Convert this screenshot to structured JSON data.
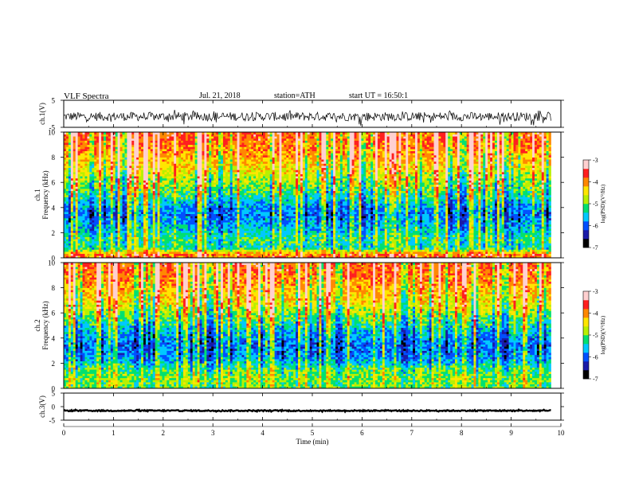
{
  "header": {
    "title": "VLF Spectra",
    "date": "Jul. 21, 2018",
    "station": "station=ATH",
    "start": "start UT = 16:50:1"
  },
  "colors": {
    "waveform": "#000000",
    "axis": "#000000",
    "spectrogram_scale": [
      "#000000",
      "#1a1aa8",
      "#0050ff",
      "#00c8ff",
      "#00e070",
      "#b8f000",
      "#ffe600",
      "#ff8800",
      "#ff1f1f",
      "#ffd0d0"
    ]
  },
  "chart_data": [
    {
      "type": "line",
      "name": "ch1-waveform",
      "ylabel": "ch.1(V)",
      "ylim": [
        -5,
        5
      ],
      "yticks": [
        "5",
        "-5"
      ],
      "xlim": [
        0,
        10
      ],
      "trace": {
        "baseline": -1.0,
        "amplitude_range": [
          -4.5,
          1.5
        ],
        "end_min": 9.8
      }
    },
    {
      "type": "heatmap",
      "name": "ch1-spectrogram",
      "ylabel": [
        "ch.1",
        "Frequency (kHz)"
      ],
      "ylim": [
        0,
        10
      ],
      "yticks": [
        "0",
        "2",
        "4",
        "6",
        "8",
        "10"
      ],
      "xlim": [
        0,
        10
      ],
      "data_end_min": 9.8,
      "log_psd_by_freq": [
        {
          "f": 0.3,
          "v": -3.9
        },
        {
          "f": 0.8,
          "v": -5.4
        },
        {
          "f": 1.5,
          "v": -5.2
        },
        {
          "f": 2.5,
          "v": -5.6
        },
        {
          "f": 3.5,
          "v": -5.9
        },
        {
          "f": 4.5,
          "v": -5.5
        },
        {
          "f": 5.5,
          "v": -5.0
        },
        {
          "f": 6.5,
          "v": -4.7
        },
        {
          "f": 7.5,
          "v": -4.3
        },
        {
          "f": 8.5,
          "v": -4.0
        },
        {
          "f": 9.5,
          "v": -3.8
        }
      ],
      "colorbar": {
        "label": "log(PSD)(V²/Hz)",
        "range": [
          -7,
          -3
        ],
        "ticks": [
          "-3",
          "-4",
          "-5",
          "-6",
          "-7"
        ]
      }
    },
    {
      "type": "heatmap",
      "name": "ch2-spectrogram",
      "ylabel": [
        "ch.2",
        "Frequency (kHz)"
      ],
      "ylim": [
        0,
        10
      ],
      "yticks": [
        "0",
        "2",
        "4",
        "6",
        "8",
        "10"
      ],
      "xlim": [
        0,
        10
      ],
      "data_end_min": 9.8,
      "log_psd_by_freq": [
        {
          "f": 0.3,
          "v": -5.0
        },
        {
          "f": 0.8,
          "v": -4.9
        },
        {
          "f": 1.5,
          "v": -5.1
        },
        {
          "f": 2.5,
          "v": -5.8
        },
        {
          "f": 3.5,
          "v": -5.9
        },
        {
          "f": 4.5,
          "v": -5.6
        },
        {
          "f": 5.5,
          "v": -5.1
        },
        {
          "f": 6.5,
          "v": -4.6
        },
        {
          "f": 7.5,
          "v": -4.3
        },
        {
          "f": 8.5,
          "v": -4.0
        },
        {
          "f": 9.5,
          "v": -3.8
        }
      ],
      "colorbar": {
        "label": "log(PSD)(V²/Hz)",
        "range": [
          -7,
          -3
        ],
        "ticks": [
          "-3",
          "-4",
          "-5",
          "-6",
          "-7"
        ]
      }
    },
    {
      "type": "line",
      "name": "ch3-waveform",
      "ylabel": "ch.3(V)",
      "ylim": [
        -5,
        5
      ],
      "yticks": [
        "5",
        "0",
        "-5"
      ],
      "xlim": [
        0,
        10
      ],
      "xlabel": "Time (min)",
      "xticks": [
        "0",
        "1",
        "2",
        "3",
        "4",
        "5",
        "6",
        "7",
        "8",
        "9",
        "10"
      ],
      "trace": {
        "baseline": -1.5,
        "amplitude_range": [
          -1.9,
          -1.1
        ],
        "end_min": 9.8
      }
    }
  ]
}
